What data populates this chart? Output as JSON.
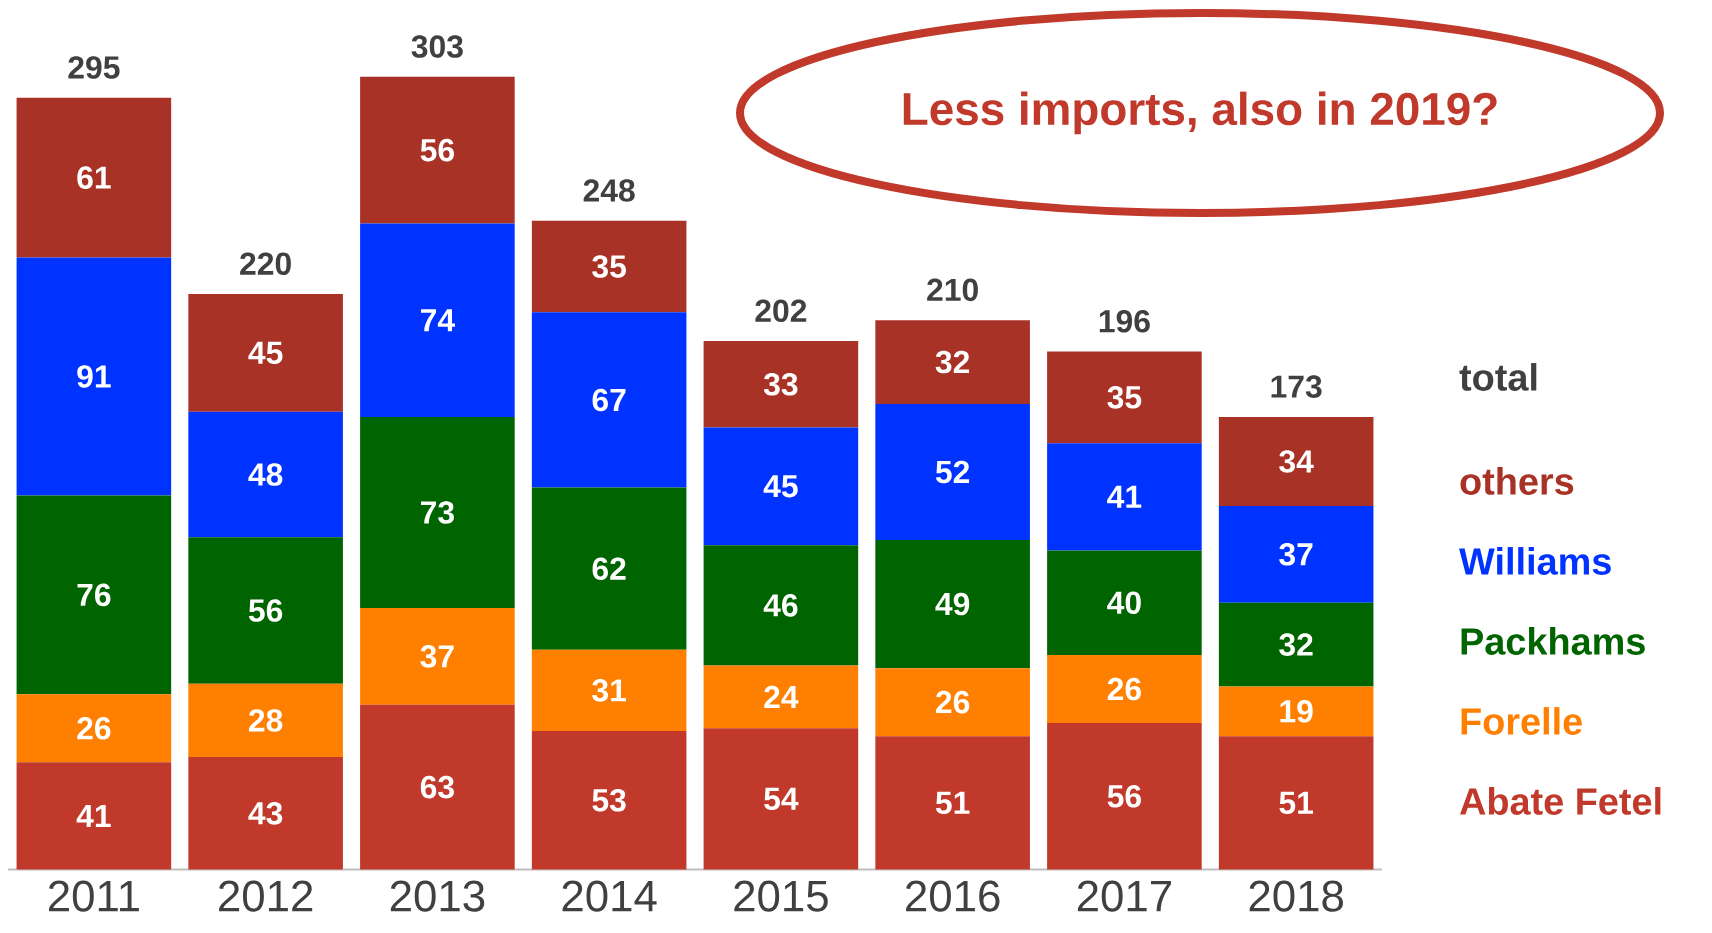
{
  "chart_data": {
    "type": "bar",
    "stacked": true,
    "data_labels": true,
    "legend": "right",
    "legend_title": "total",
    "categories": [
      "2011",
      "2012",
      "2013",
      "2014",
      "2015",
      "2016",
      "2017",
      "2018"
    ],
    "series": [
      {
        "name": "Abate Fetel",
        "color": "#c0392b",
        "values": [
          41,
          43,
          63,
          53,
          54,
          51,
          56,
          51
        ]
      },
      {
        "name": "Forelle",
        "color": "#ff7f00",
        "values": [
          26,
          28,
          37,
          31,
          24,
          26,
          26,
          19
        ]
      },
      {
        "name": "Packhams",
        "color": "#006400",
        "values": [
          76,
          56,
          73,
          62,
          46,
          49,
          40,
          32
        ]
      },
      {
        "name": "Williams",
        "color": "#0033ff",
        "values": [
          91,
          48,
          74,
          67,
          45,
          52,
          41,
          37
        ]
      },
      {
        "name": "others",
        "color": "#a93226",
        "values": [
          61,
          45,
          56,
          35,
          33,
          32,
          35,
          34
        ]
      }
    ],
    "totals": [
      "295",
      "220",
      "303",
      "248",
      "202",
      "210",
      "196",
      "173"
    ],
    "annotations": [
      "Less imports, also in 2019?"
    ]
  }
}
